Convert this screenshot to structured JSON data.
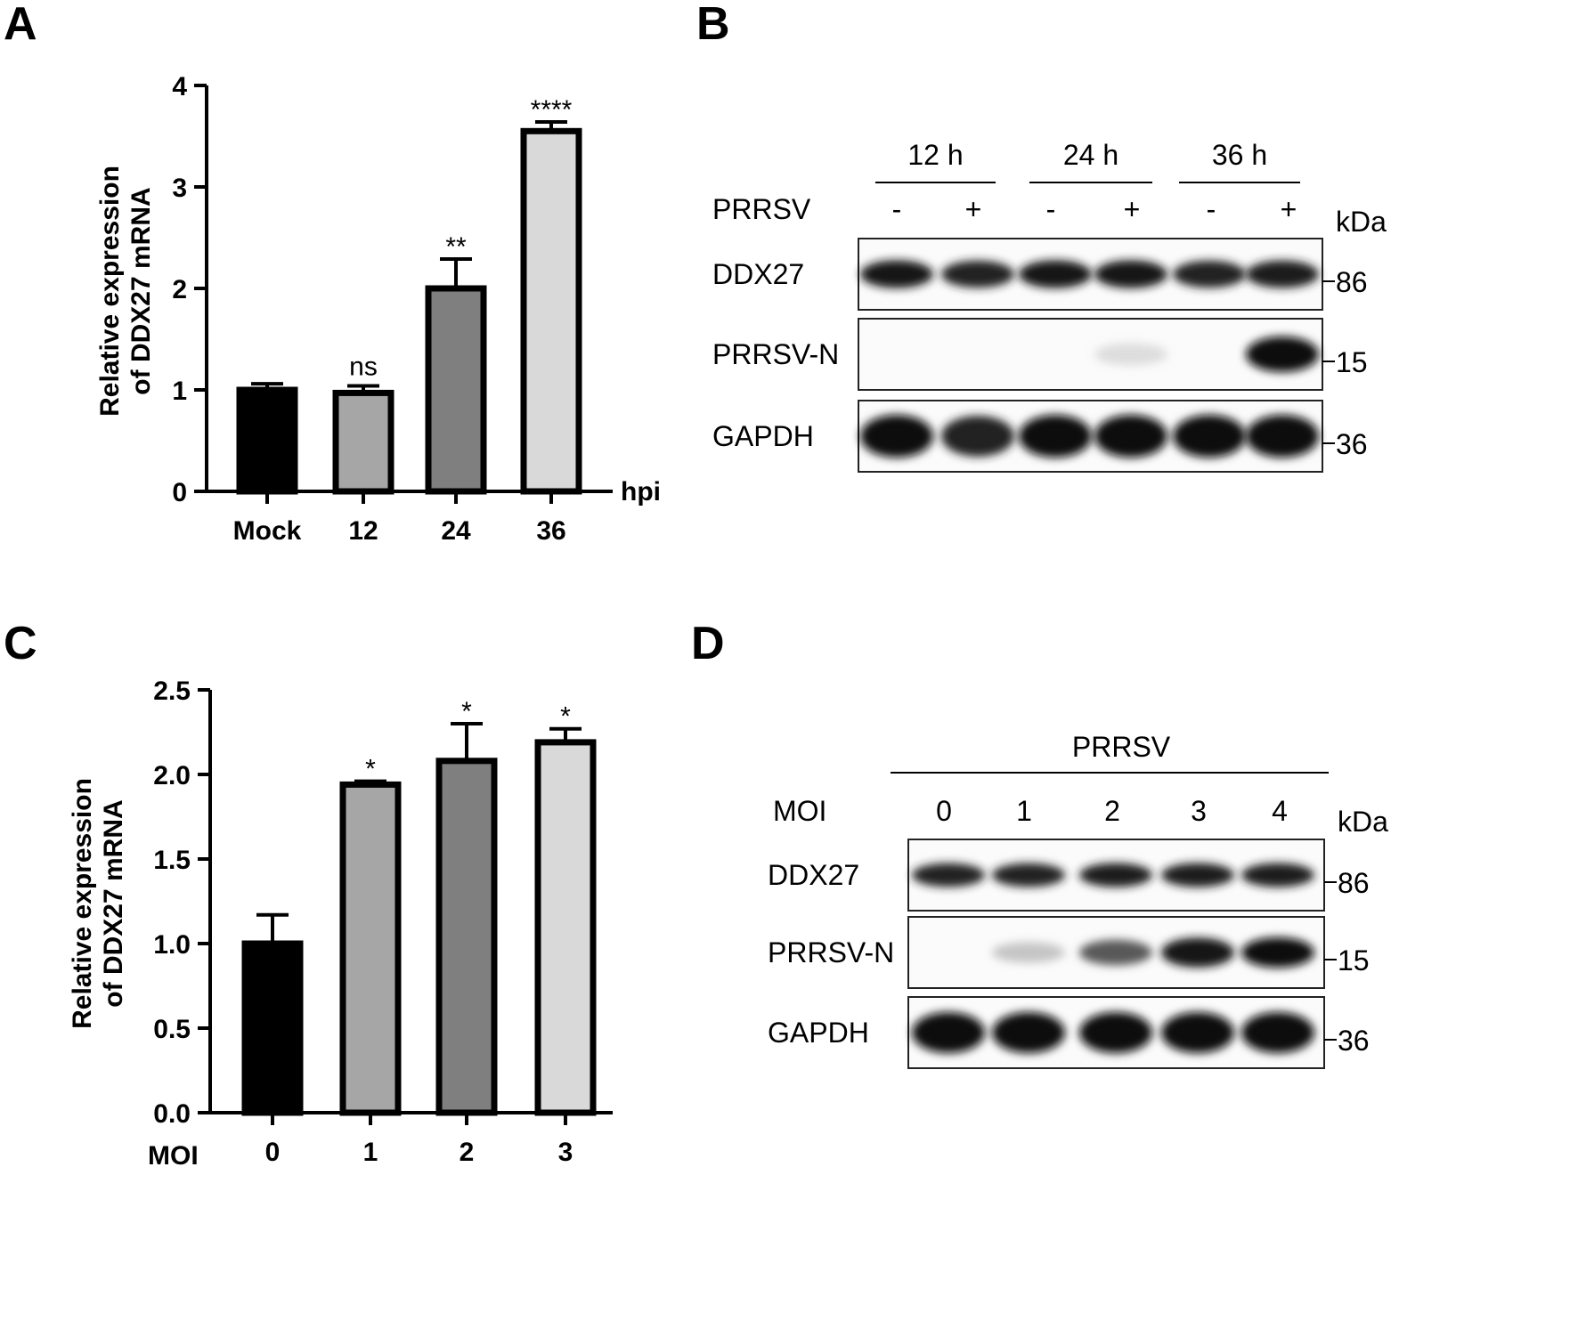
{
  "panels": {
    "A": {
      "letter": "A",
      "chart_data": {
        "type": "bar",
        "categories": [
          "Mock",
          "12",
          "24",
          "36"
        ],
        "values": [
          1.0,
          0.97,
          2.0,
          3.55
        ],
        "errors": [
          0.06,
          0.07,
          0.29,
          0.09
        ],
        "significance": [
          "",
          "ns",
          "**",
          "****"
        ],
        "bar_colors": [
          "#000000",
          "#a6a6a6",
          "#7f7f7f",
          "#d9d9d9"
        ],
        "ylabel_line1": "Relative expression",
        "ylabel_line2": "of DDX27 mRNA",
        "xunit": "hpi",
        "ylim": [
          0,
          4
        ],
        "yticks": [
          "0",
          "1",
          "2",
          "3",
          "4"
        ]
      }
    },
    "B": {
      "letter": "B",
      "time_headers": [
        "12 h",
        "24 h",
        "36 h"
      ],
      "treatment_label": "PRRSV",
      "lane_signs": [
        "-",
        "+",
        "-",
        "+",
        "-",
        "+"
      ],
      "kda_label": "kDa",
      "rows": [
        {
          "label": "DDX27",
          "marker": "86",
          "band_intensity": [
            0.95,
            0.9,
            0.95,
            0.95,
            0.9,
            0.92
          ]
        },
        {
          "label": "PRRSV-N",
          "marker": "15",
          "band_intensity": [
            0,
            0,
            0,
            0.18,
            0,
            1.0
          ]
        },
        {
          "label": "GAPDH",
          "marker": "36",
          "band_intensity": [
            1.0,
            0.9,
            1.0,
            1.0,
            1.0,
            1.0
          ]
        }
      ]
    },
    "C": {
      "letter": "C",
      "chart_data": {
        "type": "bar",
        "categories": [
          "0",
          "1",
          "2",
          "3"
        ],
        "values": [
          1.0,
          1.94,
          2.08,
          2.19
        ],
        "errors": [
          0.17,
          0.02,
          0.22,
          0.08
        ],
        "significance": [
          "",
          "*",
          "*",
          "*"
        ],
        "bar_colors": [
          "#000000",
          "#a6a6a6",
          "#7f7f7f",
          "#d9d9d9"
        ],
        "ylabel_line1": "Relative expression",
        "ylabel_line2": "of DDX27 mRNA",
        "xlabel": "MOI",
        "ylim": [
          0,
          2.5
        ],
        "yticks": [
          "0.0",
          "0.5",
          "1.0",
          "1.5",
          "2.0",
          "2.5"
        ]
      }
    },
    "D": {
      "letter": "D",
      "treatment_label": "PRRSV",
      "moi_label": "MOI",
      "moi_values": [
        "0",
        "1",
        "2",
        "3",
        "4"
      ],
      "kda_label": "kDa",
      "rows": [
        {
          "label": "DDX27",
          "marker": "86",
          "band_intensity": [
            0.9,
            0.9,
            0.92,
            0.92,
            0.92
          ]
        },
        {
          "label": "PRRSV-N",
          "marker": "15",
          "band_intensity": [
            0,
            0.3,
            0.65,
            0.95,
            1.0
          ]
        },
        {
          "label": "GAPDH",
          "marker": "36",
          "band_intensity": [
            1.0,
            1.0,
            1.0,
            1.0,
            1.0
          ]
        }
      ]
    }
  }
}
